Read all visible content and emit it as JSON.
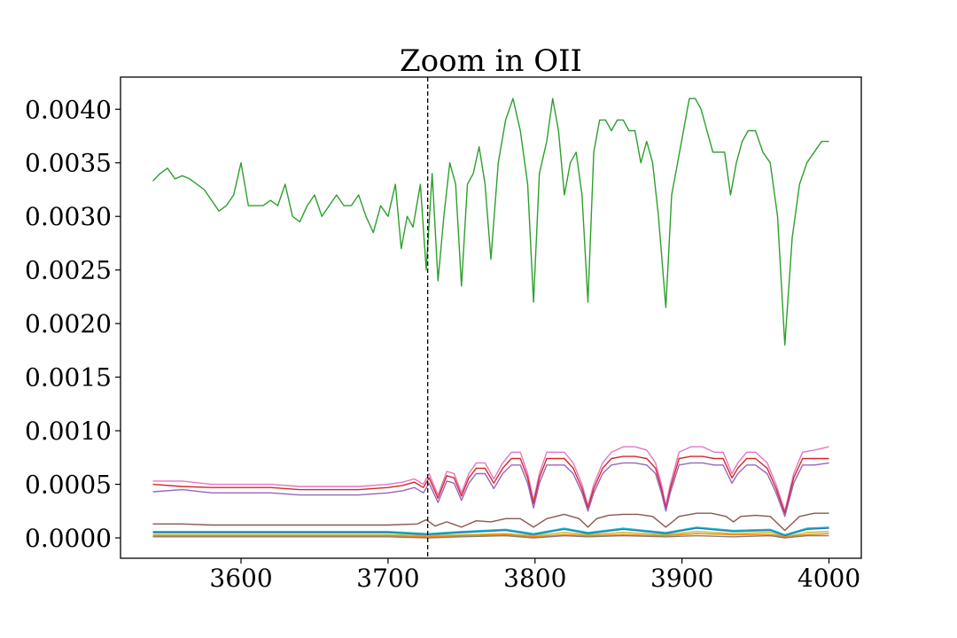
{
  "chart_data": {
    "type": "line",
    "title": "Zoom in OII",
    "xlabel": "",
    "ylabel": "",
    "xlim": [
      3518,
      4022
    ],
    "ylim": [
      -0.00019,
      0.0043
    ],
    "xticks": [
      3600,
      3700,
      3800,
      3900,
      4000
    ],
    "xtick_labels": [
      "3600",
      "3700",
      "3800",
      "3900",
      "4000"
    ],
    "yticks": [
      0.0,
      0.0005,
      0.001,
      0.0015,
      0.002,
      0.0025,
      0.003,
      0.0035,
      0.004
    ],
    "ytick_labels": [
      "0.0000",
      "0.0005",
      "0.0010",
      "0.0015",
      "0.0020",
      "0.0025",
      "0.0030",
      "0.0035",
      "0.0040"
    ],
    "grid": false,
    "legend": "none",
    "vline": {
      "x": 3727,
      "style": "dashed",
      "color": "#000000"
    },
    "series": [
      {
        "color": "#2ca02c",
        "x": [
          3540,
          3545,
          3550,
          3555,
          3560,
          3565,
          3570,
          3575,
          3580,
          3585,
          3590,
          3595,
          3600,
          3605,
          3610,
          3615,
          3620,
          3625,
          3630,
          3635,
          3640,
          3645,
          3650,
          3655,
          3660,
          3665,
          3670,
          3675,
          3680,
          3685,
          3690,
          3695,
          3700,
          3705,
          3709,
          3713,
          3717,
          3722,
          3726,
          3730,
          3734,
          3738,
          3742,
          3746,
          3750,
          3754,
          3758,
          3762,
          3766,
          3770,
          3775,
          3780,
          3785,
          3790,
          3795,
          3799,
          3803,
          3808,
          3812,
          3816,
          3820,
          3824,
          3828,
          3832,
          3836,
          3840,
          3844,
          3848,
          3852,
          3856,
          3860,
          3864,
          3868,
          3872,
          3876,
          3880,
          3884,
          3889,
          3893,
          3897,
          3901,
          3905,
          3909,
          3913,
          3917,
          3921,
          3925,
          3929,
          3933,
          3937,
          3941,
          3945,
          3950,
          3955,
          3960,
          3965,
          3970,
          3975,
          3980,
          3985,
          3990,
          3995,
          4000
        ],
        "values": [
          0.00333,
          0.0034,
          0.00345,
          0.00335,
          0.00338,
          0.00335,
          0.0033,
          0.00325,
          0.00315,
          0.00305,
          0.0031,
          0.0032,
          0.0035,
          0.0031,
          0.0031,
          0.0031,
          0.00315,
          0.0031,
          0.0033,
          0.003,
          0.00295,
          0.0031,
          0.0032,
          0.003,
          0.0031,
          0.0032,
          0.0031,
          0.0031,
          0.0032,
          0.003,
          0.00285,
          0.0031,
          0.003,
          0.0033,
          0.0027,
          0.003,
          0.0029,
          0.0033,
          0.0025,
          0.0034,
          0.0024,
          0.003,
          0.0035,
          0.0033,
          0.00235,
          0.0033,
          0.0034,
          0.00365,
          0.0033,
          0.0026,
          0.0035,
          0.0039,
          0.0041,
          0.0038,
          0.0033,
          0.0022,
          0.0034,
          0.0037,
          0.0041,
          0.0038,
          0.0032,
          0.0035,
          0.0036,
          0.0032,
          0.0022,
          0.0036,
          0.0039,
          0.0039,
          0.0038,
          0.0039,
          0.0039,
          0.0038,
          0.0038,
          0.0035,
          0.0037,
          0.0035,
          0.003,
          0.00215,
          0.0032,
          0.0035,
          0.0038,
          0.0041,
          0.0041,
          0.004,
          0.0038,
          0.0036,
          0.0036,
          0.0036,
          0.0032,
          0.0035,
          0.0037,
          0.0038,
          0.0038,
          0.0036,
          0.0035,
          0.003,
          0.0018,
          0.0028,
          0.0033,
          0.0035,
          0.0036,
          0.0037,
          0.0037
        ]
      },
      {
        "color": "#e377c2",
        "x": [
          3540,
          3560,
          3580,
          3600,
          3620,
          3640,
          3660,
          3680,
          3700,
          3710,
          3718,
          3724,
          3728,
          3734,
          3740,
          3745,
          3750,
          3755,
          3760,
          3766,
          3772,
          3778,
          3784,
          3790,
          3795,
          3799,
          3803,
          3808,
          3814,
          3820,
          3826,
          3832,
          3836,
          3840,
          3846,
          3852,
          3860,
          3868,
          3876,
          3882,
          3886,
          3889,
          3892,
          3898,
          3906,
          3914,
          3922,
          3928,
          3934,
          3938,
          3944,
          3950,
          3958,
          3964,
          3970,
          3976,
          3982,
          3990,
          4000
        ],
        "values": [
          0.00053,
          0.00053,
          0.0005,
          0.0005,
          0.0005,
          0.00048,
          0.00048,
          0.00048,
          0.0005,
          0.00052,
          0.00055,
          0.0005,
          0.0006,
          0.0004,
          0.00062,
          0.0006,
          0.00042,
          0.0006,
          0.0007,
          0.0007,
          0.00055,
          0.0007,
          0.0008,
          0.0008,
          0.0006,
          0.00035,
          0.0006,
          0.0008,
          0.0008,
          0.0008,
          0.0007,
          0.0005,
          0.0003,
          0.0005,
          0.0007,
          0.0008,
          0.00085,
          0.00085,
          0.00082,
          0.0007,
          0.0005,
          0.0003,
          0.0005,
          0.0008,
          0.00085,
          0.00085,
          0.0008,
          0.0008,
          0.0006,
          0.0007,
          0.0008,
          0.0008,
          0.0007,
          0.0005,
          0.00025,
          0.0006,
          0.0008,
          0.00082,
          0.00085
        ]
      },
      {
        "color": "#d62728",
        "x": [
          3540,
          3560,
          3580,
          3600,
          3620,
          3640,
          3660,
          3680,
          3700,
          3710,
          3718,
          3724,
          3728,
          3734,
          3740,
          3745,
          3750,
          3755,
          3760,
          3766,
          3772,
          3778,
          3784,
          3790,
          3795,
          3799,
          3803,
          3808,
          3814,
          3820,
          3826,
          3832,
          3836,
          3840,
          3846,
          3852,
          3860,
          3868,
          3876,
          3882,
          3886,
          3889,
          3892,
          3898,
          3906,
          3914,
          3922,
          3928,
          3934,
          3938,
          3944,
          3950,
          3958,
          3964,
          3970,
          3976,
          3982,
          3990,
          4000
        ],
        "values": [
          0.0005,
          0.00048,
          0.00047,
          0.00047,
          0.00047,
          0.00045,
          0.00045,
          0.00045,
          0.00047,
          0.00049,
          0.00052,
          0.00047,
          0.00056,
          0.00037,
          0.00058,
          0.00056,
          0.00039,
          0.00056,
          0.00065,
          0.00065,
          0.00051,
          0.00065,
          0.00074,
          0.00074,
          0.00056,
          0.00032,
          0.00056,
          0.00074,
          0.00074,
          0.00074,
          0.00065,
          0.00046,
          0.00028,
          0.00046,
          0.00065,
          0.00074,
          0.00076,
          0.00076,
          0.00074,
          0.00065,
          0.00046,
          0.00028,
          0.00046,
          0.00074,
          0.00076,
          0.00076,
          0.00074,
          0.00074,
          0.00056,
          0.00065,
          0.00074,
          0.00074,
          0.00065,
          0.00046,
          0.00023,
          0.00056,
          0.00074,
          0.00074,
          0.00074
        ]
      },
      {
        "color": "#9467bd",
        "x": [
          3540,
          3560,
          3580,
          3600,
          3620,
          3640,
          3660,
          3680,
          3700,
          3710,
          3718,
          3724,
          3728,
          3734,
          3740,
          3745,
          3750,
          3755,
          3760,
          3766,
          3772,
          3778,
          3784,
          3790,
          3795,
          3799,
          3803,
          3808,
          3814,
          3820,
          3826,
          3832,
          3836,
          3840,
          3846,
          3852,
          3860,
          3868,
          3876,
          3882,
          3886,
          3889,
          3892,
          3898,
          3906,
          3914,
          3922,
          3928,
          3934,
          3938,
          3944,
          3950,
          3958,
          3964,
          3970,
          3976,
          3982,
          3990,
          4000
        ],
        "values": [
          0.00043,
          0.00045,
          0.00042,
          0.00042,
          0.00042,
          0.0004,
          0.0004,
          0.0004,
          0.00042,
          0.00044,
          0.00047,
          0.00042,
          0.00051,
          0.00033,
          0.00053,
          0.00051,
          0.00035,
          0.00051,
          0.0006,
          0.0006,
          0.00046,
          0.0006,
          0.00068,
          0.00068,
          0.00051,
          0.00028,
          0.00051,
          0.00068,
          0.00068,
          0.00068,
          0.0006,
          0.00042,
          0.00025,
          0.00042,
          0.0006,
          0.00068,
          0.0007,
          0.0007,
          0.00068,
          0.0006,
          0.00042,
          0.00025,
          0.00042,
          0.00068,
          0.0007,
          0.0007,
          0.00068,
          0.00068,
          0.00051,
          0.0006,
          0.00068,
          0.00068,
          0.0006,
          0.00042,
          0.0002,
          0.00051,
          0.00068,
          0.00068,
          0.0007
        ]
      },
      {
        "color": "#8c564b",
        "x": [
          3540,
          3560,
          3580,
          3600,
          3620,
          3640,
          3660,
          3680,
          3700,
          3720,
          3726,
          3732,
          3740,
          3750,
          3760,
          3770,
          3780,
          3790,
          3799,
          3808,
          3820,
          3830,
          3836,
          3842,
          3850,
          3860,
          3870,
          3880,
          3889,
          3898,
          3910,
          3920,
          3930,
          3935,
          3940,
          3950,
          3960,
          3970,
          3980,
          3990,
          4000
        ],
        "values": [
          0.00013,
          0.00013,
          0.00012,
          0.00012,
          0.00012,
          0.00012,
          0.00012,
          0.00012,
          0.00012,
          0.00013,
          0.00017,
          0.00011,
          0.00015,
          0.0001,
          0.00016,
          0.00015,
          0.00018,
          0.00018,
          0.0001,
          0.00018,
          0.00022,
          0.00018,
          0.0001,
          0.00018,
          0.00021,
          0.00022,
          0.00022,
          0.0002,
          0.0001,
          0.0002,
          0.00023,
          0.00023,
          0.0002,
          0.00015,
          0.0002,
          0.00021,
          0.0002,
          7e-05,
          0.0002,
          0.00023,
          0.00023
        ]
      },
      {
        "color": "#17becf",
        "x": [
          3540,
          3580,
          3620,
          3660,
          3700,
          3727,
          3750,
          3780,
          3799,
          3820,
          3836,
          3860,
          3889,
          3910,
          3935,
          3960,
          3970,
          3985,
          4000
        ],
        "values": [
          6e-05,
          6e-05,
          6e-05,
          6e-05,
          6e-05,
          4e-05,
          6e-05,
          8e-05,
          4e-05,
          9e-05,
          5e-05,
          9e-05,
          5e-05,
          0.0001,
          7e-05,
          8e-05,
          3e-05,
          9e-05,
          0.0001
        ]
      },
      {
        "color": "#1f77b4",
        "x": [
          3540,
          3580,
          3620,
          3660,
          3700,
          3727,
          3750,
          3780,
          3799,
          3820,
          3836,
          3860,
          3889,
          3910,
          3935,
          3960,
          3970,
          3985,
          4000
        ],
        "values": [
          5e-05,
          5e-05,
          5e-05,
          5e-05,
          5e-05,
          3e-05,
          5e-05,
          7e-05,
          3e-05,
          8e-05,
          4e-05,
          8e-05,
          4e-05,
          9e-05,
          6e-05,
          7e-05,
          2e-05,
          8e-05,
          9e-05
        ]
      },
      {
        "color": "#bcbd22",
        "x": [
          3540,
          3580,
          3620,
          3660,
          3700,
          3727,
          3750,
          3780,
          3799,
          3820,
          3836,
          3860,
          3889,
          3910,
          3935,
          3960,
          3970,
          3985,
          4000
        ],
        "values": [
          3e-05,
          3e-05,
          3e-05,
          3e-05,
          3e-05,
          2e-05,
          3e-05,
          4e-05,
          2e-05,
          5e-05,
          3e-05,
          5e-05,
          3e-05,
          6e-05,
          4e-05,
          5e-05,
          1e-05,
          5e-05,
          6e-05
        ]
      },
      {
        "color": "#ff7f0e",
        "x": [
          3540,
          3580,
          3620,
          3660,
          3700,
          3727,
          3750,
          3780,
          3799,
          3820,
          3836,
          3860,
          3889,
          3910,
          3935,
          3960,
          3970,
          3985,
          4000
        ],
        "values": [
          2e-05,
          2e-05,
          2e-05,
          2e-05,
          2e-05,
          1e-05,
          2e-05,
          3e-05,
          1e-05,
          3e-05,
          2e-05,
          3e-05,
          2e-05,
          4e-05,
          3e-05,
          3e-05,
          1e-05,
          3e-05,
          4e-05
        ]
      },
      {
        "color": "#7f7f7f",
        "x": [
          3540,
          3580,
          3620,
          3660,
          3700,
          3727,
          3750,
          3780,
          3799,
          3820,
          3836,
          3860,
          3889,
          3910,
          3935,
          3960,
          3970,
          3985,
          4000
        ],
        "values": [
          1e-05,
          1e-05,
          1e-05,
          1e-05,
          1e-05,
          0.0,
          1e-05,
          2e-05,
          0.0,
          2e-05,
          1e-05,
          2e-05,
          1e-05,
          2e-05,
          1e-05,
          2e-05,
          0.0,
          2e-05,
          2e-05
        ]
      }
    ]
  }
}
